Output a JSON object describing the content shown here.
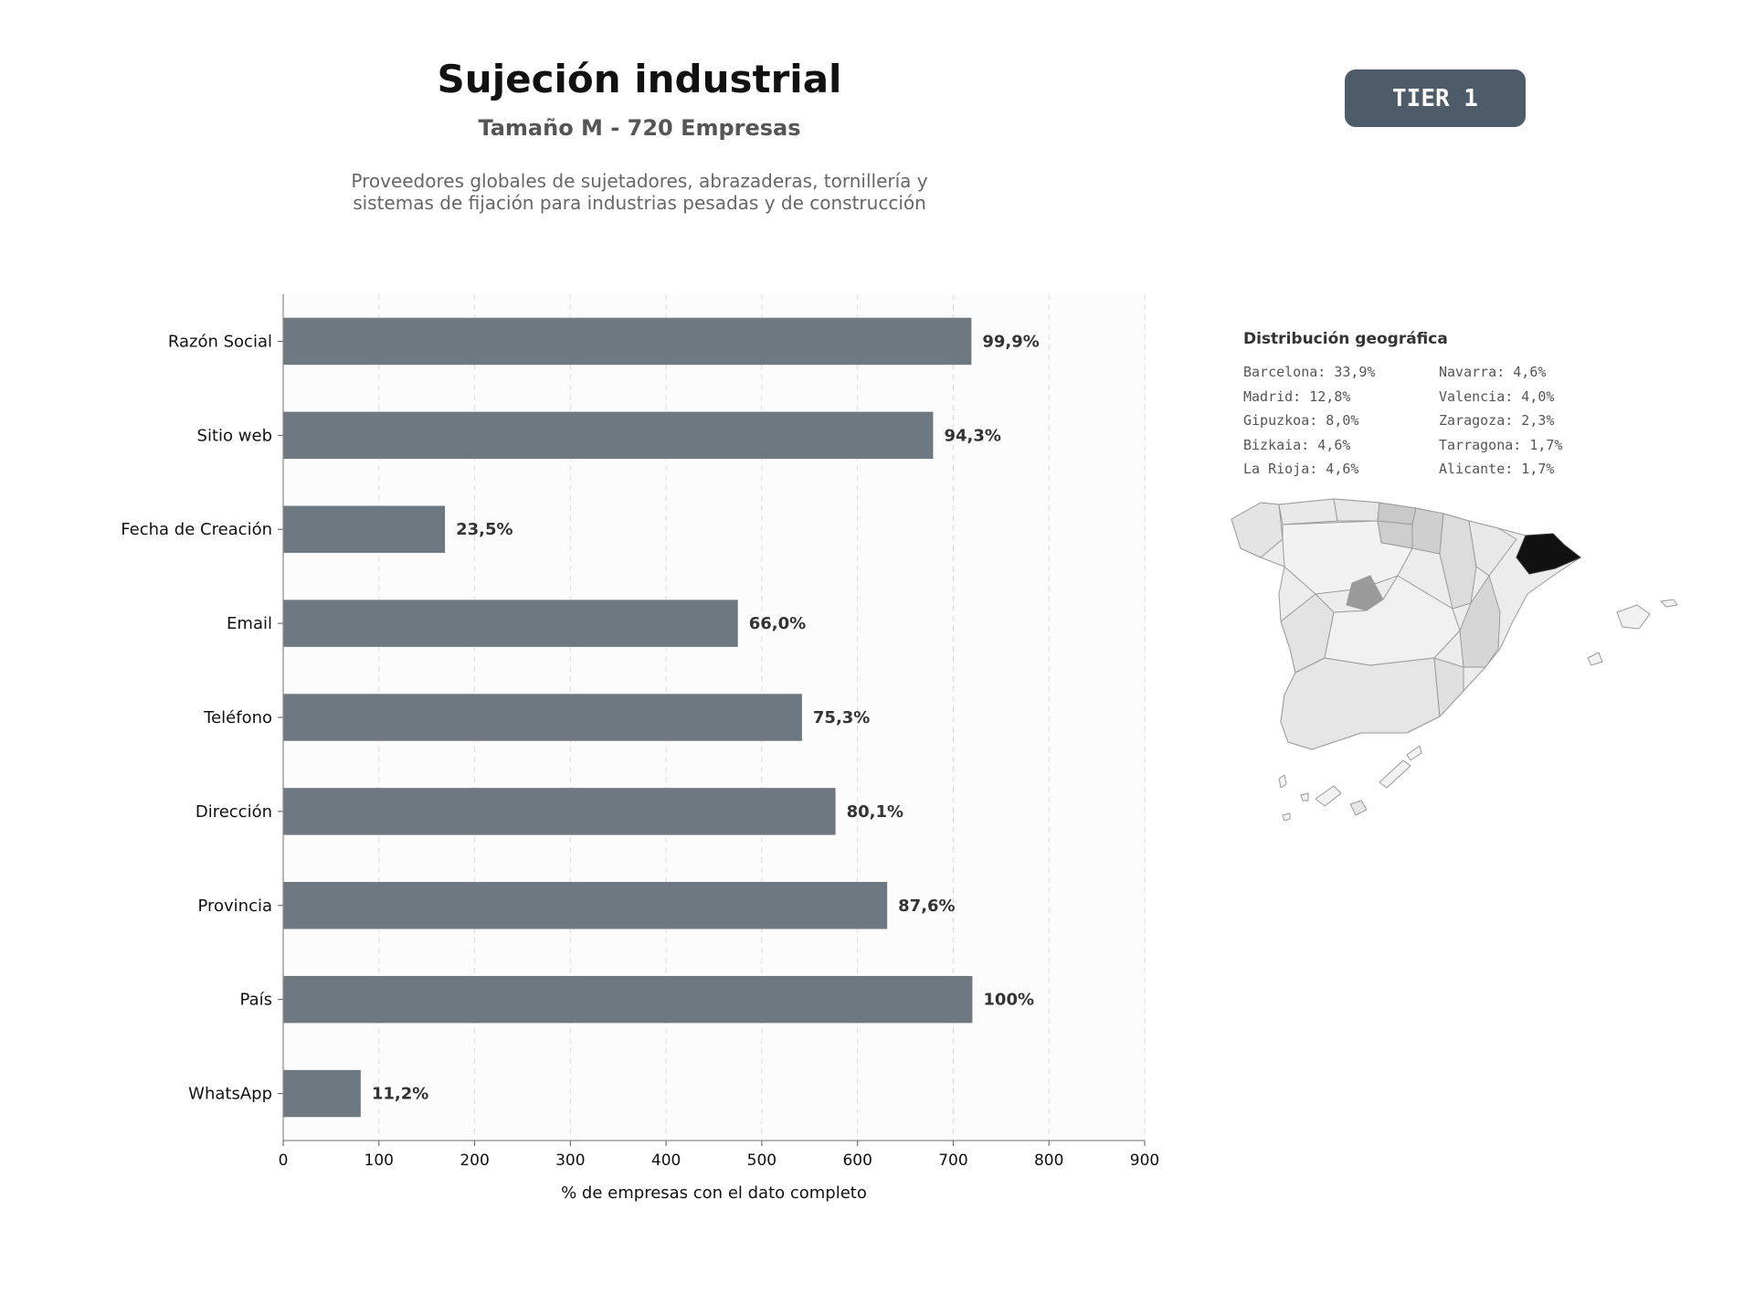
{
  "header": {
    "title": "Sujeción industrial",
    "subtitle": "Tamaño M - 720 Empresas",
    "description_lines": [
      "Proveedores globales de sujetadores, abrazaderas, tornillería y",
      "sistemas de fijación para industrias pesadas y de construcción"
    ],
    "tier_badge": "TIER 1"
  },
  "chart_data": {
    "type": "bar",
    "orientation": "horizontal",
    "categories": [
      "Razón Social",
      "Sitio web",
      "Fecha de Creación",
      "Email",
      "Teléfono",
      "Dirección",
      "Provincia",
      "País",
      "WhatsApp"
    ],
    "values": [
      719,
      679,
      169,
      475,
      542,
      577,
      631,
      720,
      81
    ],
    "data_labels": [
      "99,9%",
      "94,3%",
      "23,5%",
      "66,0%",
      "75,3%",
      "80,1%",
      "87,6%",
      "100%",
      "11,2%"
    ],
    "xlim": [
      0,
      900
    ],
    "xticks": [
      0,
      100,
      200,
      300,
      400,
      500,
      600,
      700,
      800,
      900
    ],
    "xlabel": "% de empresas con el dato completo",
    "ylabel": "",
    "grid": "vertical dashed",
    "bar_color": "#6e7881"
  },
  "geo": {
    "title": "Distribución geográfica",
    "items": [
      "Barcelona: 33,9%",
      "Navarra: 4,6%",
      "Madrid: 12,8%",
      "Valencia: 4,0%",
      "Gipuzkoa: 8,0%",
      "Zaragoza: 2,3%",
      "Bizkaia: 4,6%",
      "Tarragona: 1,7%",
      "La Rioja: 4,6%",
      "Alicante: 1,7%"
    ]
  }
}
